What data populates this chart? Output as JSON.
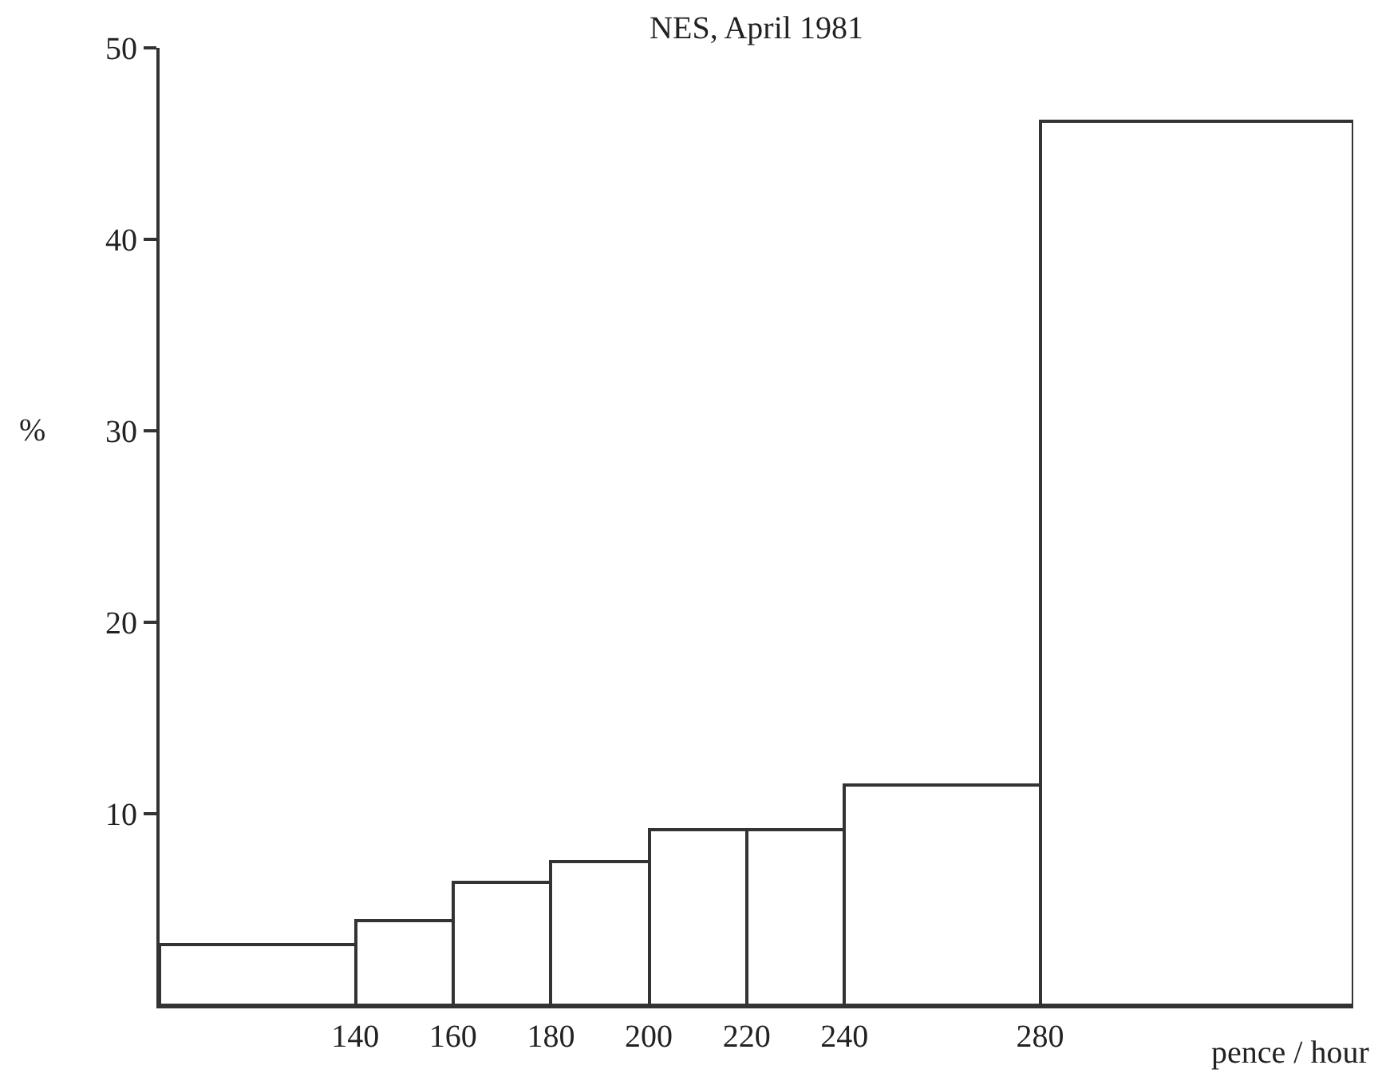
{
  "chart_data": {
    "type": "histogram",
    "title": "NES, April 1981",
    "xlabel": "pence / hour",
    "ylabel": "%",
    "bins": [
      100,
      140,
      160,
      180,
      200,
      220,
      240,
      280,
      344
    ],
    "values": [
      3.2,
      4.4,
      6.4,
      7.5,
      9.2,
      9.2,
      11.5,
      46.2
    ],
    "color": "#ffffff",
    "xlim": [
      100,
      344
    ],
    "ylim": [
      0,
      50
    ],
    "xticks": [
      140,
      160,
      180,
      200,
      220,
      240,
      280
    ],
    "yticks": [
      10,
      20,
      30,
      40,
      50
    ],
    "grid": false
  }
}
